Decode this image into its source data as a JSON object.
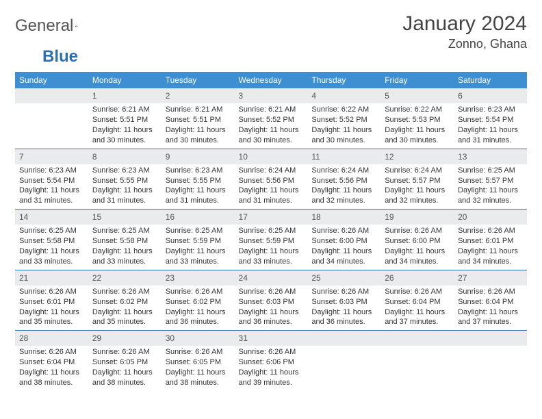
{
  "brand": {
    "part1": "General",
    "part2": "Blue"
  },
  "title": "January 2024",
  "location": "Zonno, Ghana",
  "colors": {
    "header_bg": "#3d8fd1",
    "header_text": "#ffffff",
    "daynum_bg": "#e9ebec",
    "rule": "#2c6fb3",
    "brand_accent": "#2c6fb3",
    "text": "#333333"
  },
  "weekdays": [
    "Sunday",
    "Monday",
    "Tuesday",
    "Wednesday",
    "Thursday",
    "Friday",
    "Saturday"
  ],
  "weeks": [
    [
      null,
      {
        "n": "1",
        "sr": "6:21 AM",
        "ss": "5:51 PM",
        "dl": "11 hours and 30 minutes."
      },
      {
        "n": "2",
        "sr": "6:21 AM",
        "ss": "5:51 PM",
        "dl": "11 hours and 30 minutes."
      },
      {
        "n": "3",
        "sr": "6:21 AM",
        "ss": "5:52 PM",
        "dl": "11 hours and 30 minutes."
      },
      {
        "n": "4",
        "sr": "6:22 AM",
        "ss": "5:52 PM",
        "dl": "11 hours and 30 minutes."
      },
      {
        "n": "5",
        "sr": "6:22 AM",
        "ss": "5:53 PM",
        "dl": "11 hours and 30 minutes."
      },
      {
        "n": "6",
        "sr": "6:23 AM",
        "ss": "5:54 PM",
        "dl": "11 hours and 31 minutes."
      }
    ],
    [
      {
        "n": "7",
        "sr": "6:23 AM",
        "ss": "5:54 PM",
        "dl": "11 hours and 31 minutes."
      },
      {
        "n": "8",
        "sr": "6:23 AM",
        "ss": "5:55 PM",
        "dl": "11 hours and 31 minutes."
      },
      {
        "n": "9",
        "sr": "6:23 AM",
        "ss": "5:55 PM",
        "dl": "11 hours and 31 minutes."
      },
      {
        "n": "10",
        "sr": "6:24 AM",
        "ss": "5:56 PM",
        "dl": "11 hours and 31 minutes."
      },
      {
        "n": "11",
        "sr": "6:24 AM",
        "ss": "5:56 PM",
        "dl": "11 hours and 32 minutes."
      },
      {
        "n": "12",
        "sr": "6:24 AM",
        "ss": "5:57 PM",
        "dl": "11 hours and 32 minutes."
      },
      {
        "n": "13",
        "sr": "6:25 AM",
        "ss": "5:57 PM",
        "dl": "11 hours and 32 minutes."
      }
    ],
    [
      {
        "n": "14",
        "sr": "6:25 AM",
        "ss": "5:58 PM",
        "dl": "11 hours and 33 minutes."
      },
      {
        "n": "15",
        "sr": "6:25 AM",
        "ss": "5:58 PM",
        "dl": "11 hours and 33 minutes."
      },
      {
        "n": "16",
        "sr": "6:25 AM",
        "ss": "5:59 PM",
        "dl": "11 hours and 33 minutes."
      },
      {
        "n": "17",
        "sr": "6:25 AM",
        "ss": "5:59 PM",
        "dl": "11 hours and 33 minutes."
      },
      {
        "n": "18",
        "sr": "6:26 AM",
        "ss": "6:00 PM",
        "dl": "11 hours and 34 minutes."
      },
      {
        "n": "19",
        "sr": "6:26 AM",
        "ss": "6:00 PM",
        "dl": "11 hours and 34 minutes."
      },
      {
        "n": "20",
        "sr": "6:26 AM",
        "ss": "6:01 PM",
        "dl": "11 hours and 34 minutes."
      }
    ],
    [
      {
        "n": "21",
        "sr": "6:26 AM",
        "ss": "6:01 PM",
        "dl": "11 hours and 35 minutes."
      },
      {
        "n": "22",
        "sr": "6:26 AM",
        "ss": "6:02 PM",
        "dl": "11 hours and 35 minutes."
      },
      {
        "n": "23",
        "sr": "6:26 AM",
        "ss": "6:02 PM",
        "dl": "11 hours and 36 minutes."
      },
      {
        "n": "24",
        "sr": "6:26 AM",
        "ss": "6:03 PM",
        "dl": "11 hours and 36 minutes."
      },
      {
        "n": "25",
        "sr": "6:26 AM",
        "ss": "6:03 PM",
        "dl": "11 hours and 36 minutes."
      },
      {
        "n": "26",
        "sr": "6:26 AM",
        "ss": "6:04 PM",
        "dl": "11 hours and 37 minutes."
      },
      {
        "n": "27",
        "sr": "6:26 AM",
        "ss": "6:04 PM",
        "dl": "11 hours and 37 minutes."
      }
    ],
    [
      {
        "n": "28",
        "sr": "6:26 AM",
        "ss": "6:04 PM",
        "dl": "11 hours and 38 minutes."
      },
      {
        "n": "29",
        "sr": "6:26 AM",
        "ss": "6:05 PM",
        "dl": "11 hours and 38 minutes."
      },
      {
        "n": "30",
        "sr": "6:26 AM",
        "ss": "6:05 PM",
        "dl": "11 hours and 38 minutes."
      },
      {
        "n": "31",
        "sr": "6:26 AM",
        "ss": "6:06 PM",
        "dl": "11 hours and 39 minutes."
      },
      null,
      null,
      null
    ]
  ],
  "labels": {
    "sunrise": "Sunrise:",
    "sunset": "Sunset:",
    "daylight": "Daylight:"
  }
}
